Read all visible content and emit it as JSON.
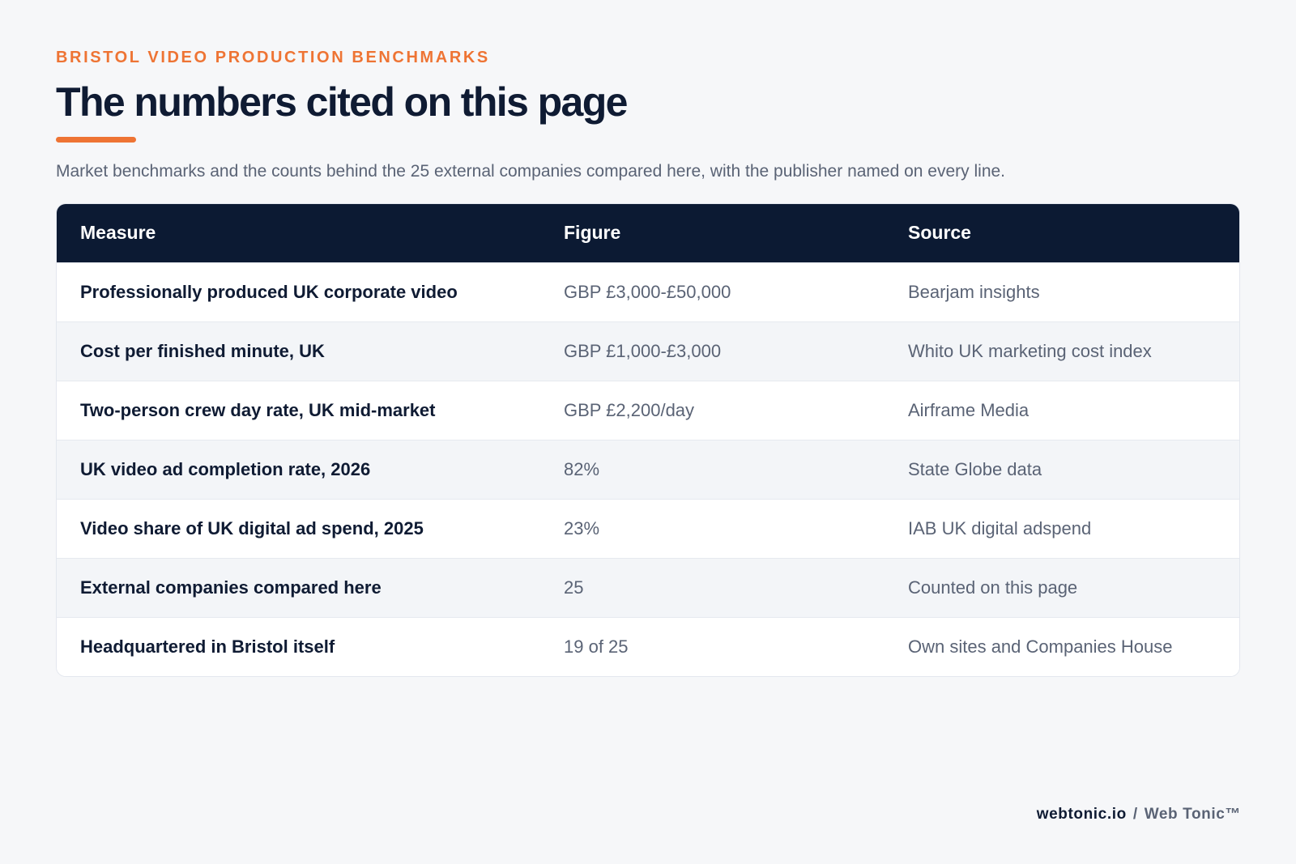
{
  "header": {
    "eyebrow": "BRISTOL VIDEO PRODUCTION BENCHMARKS",
    "title": "The numbers cited on this page",
    "subtitle": "Market benchmarks and the counts behind the 25 external companies compared here, with the publisher named on every line."
  },
  "table": {
    "columns": [
      "Measure",
      "Figure",
      "Source"
    ],
    "rows": [
      {
        "measure": "Professionally produced UK corporate video",
        "figure": "GBP £3,000-£50,000",
        "source": "Bearjam insights"
      },
      {
        "measure": "Cost per finished minute, UK",
        "figure": "GBP £1,000-£3,000",
        "source": "Whito UK marketing cost index"
      },
      {
        "measure": "Two-person crew day rate, UK mid-market",
        "figure": "GBP £2,200/day",
        "source": "Airframe Media"
      },
      {
        "measure": "UK video ad completion rate, 2026",
        "figure": "82%",
        "source": "State Globe data"
      },
      {
        "measure": "Video share of UK digital ad spend, 2025",
        "figure": "23%",
        "source": "IAB UK digital adspend"
      },
      {
        "measure": "External companies compared here",
        "figure": "25",
        "source": "Counted on this page"
      },
      {
        "measure": "Headquartered in Bristol itself",
        "figure": "19 of 25",
        "source": "Own sites and Companies House"
      }
    ]
  },
  "footer": {
    "domain": "webtonic.io",
    "separator": "/",
    "brand": "Web Tonic™"
  },
  "colors": {
    "accent": "#ee7434",
    "header_bg": "#0c1a33",
    "page_bg": "#f6f7f9"
  }
}
